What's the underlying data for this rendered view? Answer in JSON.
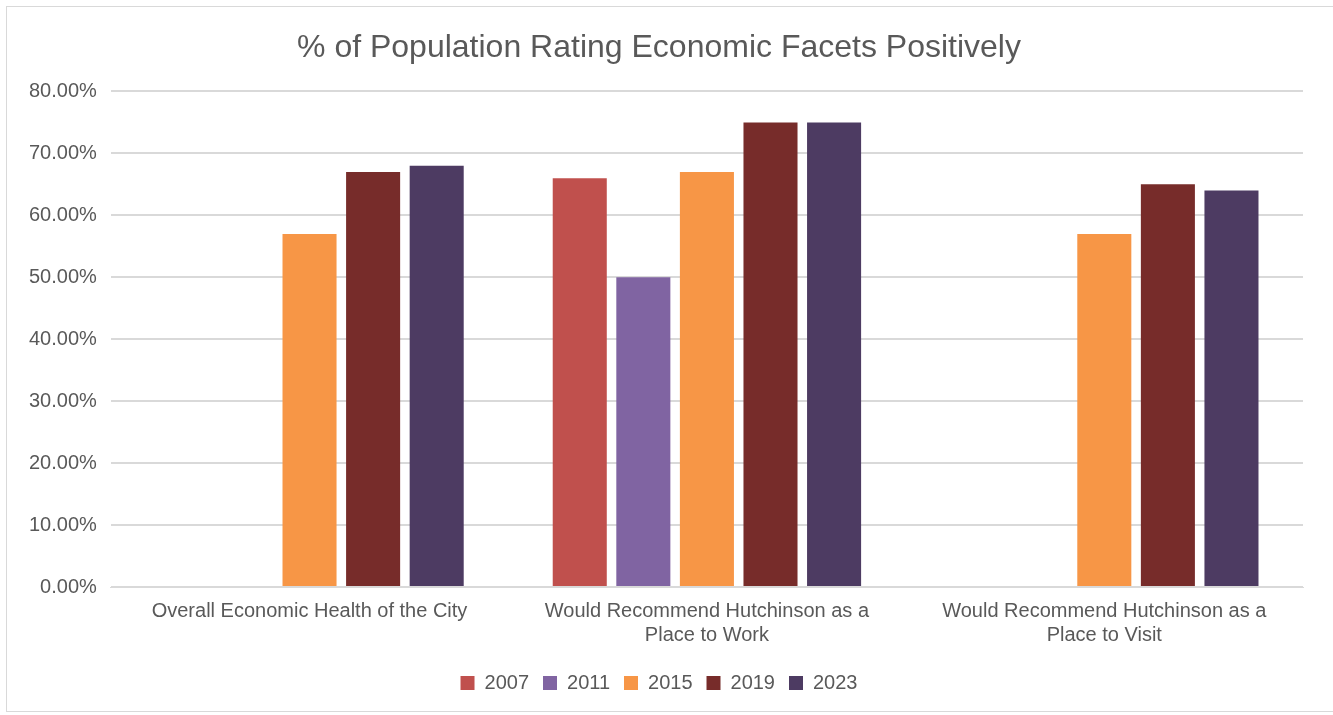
{
  "chart_data": {
    "type": "bar",
    "title": "% of Population Rating Economic Facets Positively",
    "categories": [
      "Overall Economic Health of the City",
      "Would Recommend Hutchinson as a Place to Work",
      "Would Recommend Hutchinson as a Place to Visit"
    ],
    "series": [
      {
        "name": "2007",
        "color": "#c0504d",
        "values": [
          null,
          66,
          null
        ]
      },
      {
        "name": "2011",
        "color": "#8064a2",
        "values": [
          null,
          50,
          null
        ]
      },
      {
        "name": "2015",
        "color": "#f79646",
        "values": [
          57,
          67,
          57
        ]
      },
      {
        "name": "2019",
        "color": "#772c2a",
        "values": [
          67,
          75,
          65
        ]
      },
      {
        "name": "2023",
        "color": "#4d3b62",
        "values": [
          68,
          75,
          64
        ]
      }
    ],
    "ylim": [
      0,
      80
    ],
    "yticks": [
      {
        "value": 0,
        "label": "0.00%"
      },
      {
        "value": 10,
        "label": "10.00%"
      },
      {
        "value": 20,
        "label": "20.00%"
      },
      {
        "value": 30,
        "label": "30.00%"
      },
      {
        "value": 40,
        "label": "40.00%"
      },
      {
        "value": 50,
        "label": "50.00%"
      },
      {
        "value": 60,
        "label": "60.00%"
      },
      {
        "value": 70,
        "label": "70.00%"
      },
      {
        "value": 80,
        "label": "80.00%"
      }
    ],
    "grid": "y",
    "legend": "bottom"
  }
}
